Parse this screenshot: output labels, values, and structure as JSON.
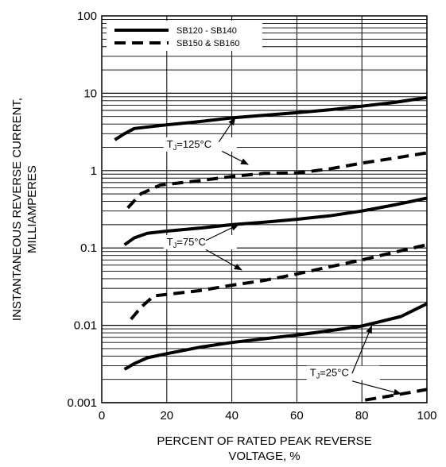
{
  "chart_data": {
    "type": "line",
    "xlabel": [
      "PERCENT OF RATED PEAK REVERSE",
      "VOLTAGE, %"
    ],
    "ylabel": [
      "INSTANTANEOUS REVERSE CURRENT,",
      "MILLIAMPERES"
    ],
    "xlim": [
      0,
      100
    ],
    "ylim": [
      0.001,
      100
    ],
    "yscale": "log",
    "grid": "y-minor",
    "x_ticks": [
      0,
      20,
      40,
      60,
      80,
      100
    ],
    "x_tick_labels": [
      "0",
      "20",
      "40",
      "60",
      "80",
      "100"
    ],
    "y_ticks": [
      0.001,
      0.01,
      0.1,
      1,
      10,
      100
    ],
    "y_tick_labels": [
      "0.001",
      "0.01",
      "0.1",
      "1",
      "10",
      "100"
    ],
    "legend": {
      "placement": "top-left",
      "entries": [
        {
          "label": "SB120 - SB140",
          "style": "solid"
        },
        {
          "label": "SB150 & SB160",
          "style": "dashed"
        }
      ]
    },
    "series": [
      {
        "legend": "SB120 - SB140",
        "temp": "125",
        "style": "solid",
        "x": [
          4,
          7,
          10,
          20,
          30,
          40,
          50,
          60,
          70,
          80,
          90,
          100
        ],
        "y": [
          2.5,
          3.0,
          3.5,
          3.9,
          4.3,
          4.8,
          5.2,
          5.6,
          6.1,
          6.8,
          7.6,
          8.8
        ]
      },
      {
        "legend": "SB150 & SB160",
        "temp": "125",
        "style": "dashed",
        "x": [
          8,
          12,
          18,
          30,
          40,
          50,
          60,
          70,
          80,
          90,
          100
        ],
        "y": [
          0.33,
          0.5,
          0.65,
          0.74,
          0.84,
          0.92,
          0.93,
          1.05,
          1.25,
          1.45,
          1.7
        ]
      },
      {
        "legend": "SB120 - SB140",
        "temp": "75",
        "style": "solid",
        "x": [
          7,
          10,
          14,
          20,
          30,
          40,
          50,
          60,
          70,
          80,
          90,
          100
        ],
        "y": [
          0.11,
          0.135,
          0.155,
          0.165,
          0.18,
          0.2,
          0.215,
          0.235,
          0.26,
          0.3,
          0.36,
          0.44
        ]
      },
      {
        "legend": "SB150 & SB160",
        "temp": "75",
        "style": "dashed",
        "x": [
          9,
          12,
          16,
          30,
          40,
          50,
          60,
          70,
          80,
          90,
          100
        ],
        "y": [
          0.012,
          0.017,
          0.024,
          0.028,
          0.033,
          0.038,
          0.046,
          0.057,
          0.07,
          0.088,
          0.11
        ]
      },
      {
        "legend": "SB120 - SB140",
        "temp": "25",
        "style": "solid",
        "x": [
          7,
          10,
          14,
          20,
          30,
          40,
          50,
          60,
          70,
          80,
          85,
          92,
          100
        ],
        "y": [
          0.0027,
          0.0032,
          0.0038,
          0.0043,
          0.0052,
          0.006,
          0.0067,
          0.0075,
          0.0085,
          0.0098,
          0.011,
          0.013,
          0.019
        ]
      },
      {
        "legend": "SB150 & SB160",
        "temp": "25",
        "style": "dashed",
        "x": [
          81,
          90,
          100
        ],
        "y": [
          0.00108,
          0.00125,
          0.00148
        ]
      }
    ],
    "annotations": [
      {
        "prefix": "T",
        "sub": "J",
        "suffix": "=125°C",
        "label_x": 20,
        "label_y": 1.98,
        "arrows": [
          {
            "from_x": 36,
            "from_y": 2.35,
            "to_x": 41,
            "to_y": 4.8
          },
          {
            "from_x": 37,
            "from_y": 1.78,
            "to_x": 45,
            "to_y": 1.2
          }
        ]
      },
      {
        "prefix": "T",
        "sub": "J",
        "suffix": "=75°C",
        "label_x": 20,
        "label_y": 0.108,
        "arrows": [
          {
            "from_x": 32,
            "from_y": 0.125,
            "to_x": 42,
            "to_y": 0.2
          },
          {
            "from_x": 32,
            "from_y": 0.095,
            "to_x": 43,
            "to_y": 0.052
          }
        ]
      },
      {
        "prefix": "T",
        "sub": "J",
        "suffix": "=25°C",
        "label_x": 64,
        "label_y": 0.0022,
        "arrows": [
          {
            "from_x": 77,
            "from_y": 0.0024,
            "to_x": 83,
            "to_y": 0.0098
          },
          {
            "from_x": 77,
            "from_y": 0.0019,
            "to_x": 92,
            "to_y": 0.0013
          }
        ]
      }
    ]
  }
}
